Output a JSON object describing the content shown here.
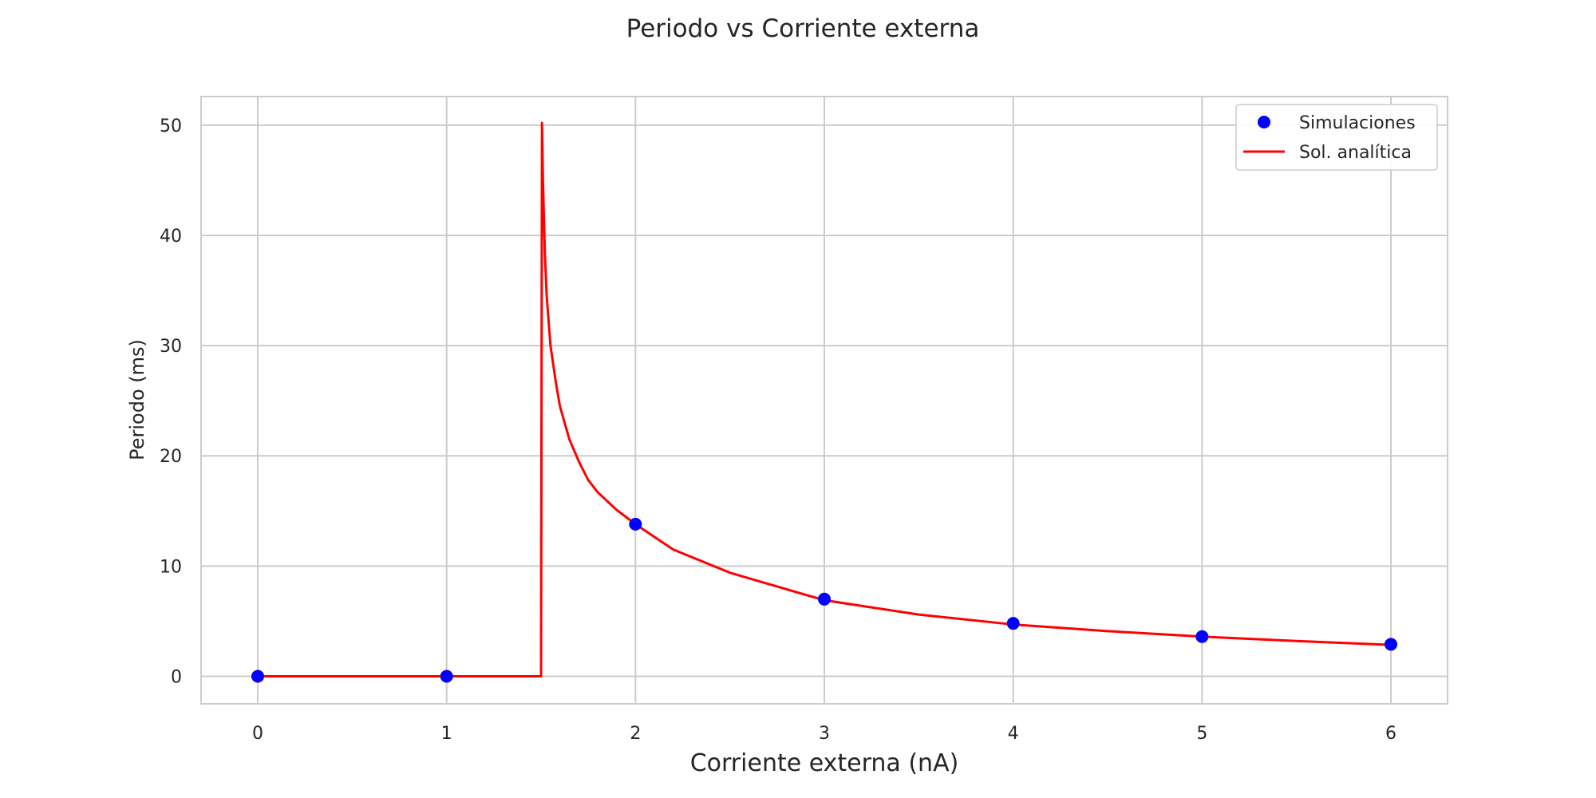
{
  "chart_data": {
    "type": "line",
    "title": "Periodo vs Corriente externa",
    "xlabel": "Corriente externa (nA)",
    "ylabel": "Periodo (ms)",
    "xlim": [
      -0.3,
      6.3
    ],
    "ylim": [
      -2.5,
      52.6
    ],
    "xticks": [
      0,
      1,
      2,
      3,
      4,
      5,
      6
    ],
    "yticks": [
      0,
      10,
      20,
      30,
      40,
      50
    ],
    "grid": true,
    "legend_position": "top-right",
    "series": [
      {
        "name": "Simulaciones",
        "kind": "scatter",
        "color": "#0000ff",
        "x": [
          0,
          1,
          2,
          3,
          4,
          5,
          6
        ],
        "y": [
          0,
          0,
          13.8,
          7.0,
          4.8,
          3.6,
          2.9
        ]
      },
      {
        "name": "Sol. analítica",
        "kind": "line",
        "color": "#ff0000",
        "x": [
          0,
          1.49,
          1.5,
          1.505,
          1.51,
          1.52,
          1.53,
          1.55,
          1.58,
          1.6,
          1.65,
          1.7,
          1.75,
          1.8,
          1.9,
          2.0,
          2.2,
          2.5,
          3.0,
          3.5,
          4.0,
          4.5,
          5.0,
          5.5,
          6.0
        ],
        "y": [
          0,
          0,
          0,
          50.2,
          45.0,
          38.5,
          34.5,
          30.0,
          26.5,
          24.5,
          21.5,
          19.5,
          17.8,
          16.7,
          15.1,
          13.8,
          11.5,
          9.4,
          6.9,
          5.6,
          4.7,
          4.1,
          3.6,
          3.2,
          2.85
        ]
      }
    ]
  }
}
